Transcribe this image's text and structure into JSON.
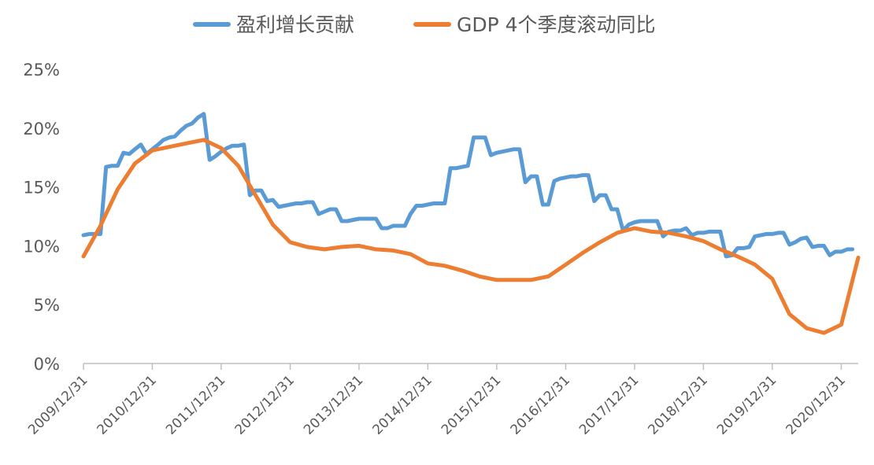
{
  "chart_data": {
    "type": "line",
    "title": "",
    "xlabel": "",
    "ylabel": "",
    "ylim": [
      0,
      0.25
    ],
    "y_ticks": [
      "0%",
      "5%",
      "10%",
      "15%",
      "20%",
      "25%"
    ],
    "x_ticks": [
      "2009/12/31",
      "2010/12/31",
      "2011/12/31",
      "2012/12/31",
      "2013/12/31",
      "2014/12/31",
      "2015/12/31",
      "2016/12/31",
      "2017/12/31",
      "2018/12/31",
      "2019/12/31",
      "2020/12/31"
    ],
    "grid": false,
    "legend_position": "top",
    "series": [
      {
        "name": "盈利增长贡献",
        "color": "#5B9BD5",
        "points": [
          [
            "2009-12-31",
            0.109
          ],
          [
            "2010-01-31",
            0.11
          ],
          [
            "2010-02-28",
            0.11
          ],
          [
            "2010-03-31",
            0.11
          ],
          [
            "2010-04-30",
            0.167
          ],
          [
            "2010-05-31",
            0.168
          ],
          [
            "2010-06-30",
            0.168
          ],
          [
            "2010-07-31",
            0.179
          ],
          [
            "2010-08-31",
            0.178
          ],
          [
            "2010-09-30",
            0.182
          ],
          [
            "2010-10-31",
            0.186
          ],
          [
            "2010-11-30",
            0.178
          ],
          [
            "2010-12-31",
            0.182
          ],
          [
            "2011-01-31",
            0.186
          ],
          [
            "2011-02-28",
            0.19
          ],
          [
            "2011-03-31",
            0.192
          ],
          [
            "2011-04-30",
            0.193
          ],
          [
            "2011-05-31",
            0.198
          ],
          [
            "2011-06-30",
            0.202
          ],
          [
            "2011-07-31",
            0.204
          ],
          [
            "2011-08-31",
            0.209
          ],
          [
            "2011-09-30",
            0.212
          ],
          [
            "2011-10-31",
            0.173
          ],
          [
            "2011-11-30",
            0.176
          ],
          [
            "2011-12-31",
            0.18
          ],
          [
            "2012-01-31",
            0.183
          ],
          [
            "2012-02-29",
            0.185
          ],
          [
            "2012-03-31",
            0.185
          ],
          [
            "2012-04-30",
            0.186
          ],
          [
            "2012-05-31",
            0.143
          ],
          [
            "2012-06-30",
            0.147
          ],
          [
            "2012-07-31",
            0.147
          ],
          [
            "2012-08-31",
            0.138
          ],
          [
            "2012-09-30",
            0.139
          ],
          [
            "2012-10-31",
            0.133
          ],
          [
            "2012-11-30",
            0.134
          ],
          [
            "2012-12-31",
            0.135
          ],
          [
            "2013-01-31",
            0.136
          ],
          [
            "2013-02-28",
            0.136
          ],
          [
            "2013-03-31",
            0.137
          ],
          [
            "2013-04-30",
            0.137
          ],
          [
            "2013-05-31",
            0.127
          ],
          [
            "2013-06-30",
            0.129
          ],
          [
            "2013-07-31",
            0.131
          ],
          [
            "2013-08-31",
            0.131
          ],
          [
            "2013-09-30",
            0.121
          ],
          [
            "2013-10-31",
            0.121
          ],
          [
            "2013-11-30",
            0.122
          ],
          [
            "2013-12-31",
            0.123
          ],
          [
            "2014-01-31",
            0.123
          ],
          [
            "2014-02-28",
            0.123
          ],
          [
            "2014-03-31",
            0.123
          ],
          [
            "2014-04-30",
            0.115
          ],
          [
            "2014-05-31",
            0.115
          ],
          [
            "2014-06-30",
            0.117
          ],
          [
            "2014-07-31",
            0.117
          ],
          [
            "2014-08-31",
            0.117
          ],
          [
            "2014-09-30",
            0.127
          ],
          [
            "2014-10-31",
            0.134
          ],
          [
            "2014-11-30",
            0.134
          ],
          [
            "2014-12-31",
            0.135
          ],
          [
            "2015-01-31",
            0.136
          ],
          [
            "2015-02-28",
            0.136
          ],
          [
            "2015-03-31",
            0.136
          ],
          [
            "2015-04-30",
            0.166
          ],
          [
            "2015-05-31",
            0.166
          ],
          [
            "2015-06-30",
            0.167
          ],
          [
            "2015-07-31",
            0.168
          ],
          [
            "2015-08-31",
            0.192
          ],
          [
            "2015-09-30",
            0.192
          ],
          [
            "2015-10-31",
            0.192
          ],
          [
            "2015-11-30",
            0.177
          ],
          [
            "2015-12-31",
            0.179
          ],
          [
            "2016-01-31",
            0.18
          ],
          [
            "2016-02-29",
            0.181
          ],
          [
            "2016-03-31",
            0.182
          ],
          [
            "2016-04-30",
            0.182
          ],
          [
            "2016-05-31",
            0.154
          ],
          [
            "2016-06-30",
            0.159
          ],
          [
            "2016-07-31",
            0.159
          ],
          [
            "2016-08-31",
            0.135
          ],
          [
            "2016-09-30",
            0.135
          ],
          [
            "2016-10-31",
            0.155
          ],
          [
            "2016-11-30",
            0.157
          ],
          [
            "2016-12-31",
            0.158
          ],
          [
            "2017-01-31",
            0.159
          ],
          [
            "2017-02-28",
            0.159
          ],
          [
            "2017-03-31",
            0.16
          ],
          [
            "2017-04-30",
            0.16
          ],
          [
            "2017-05-31",
            0.138
          ],
          [
            "2017-06-30",
            0.143
          ],
          [
            "2017-07-31",
            0.143
          ],
          [
            "2017-08-31",
            0.131
          ],
          [
            "2017-09-30",
            0.131
          ],
          [
            "2017-10-31",
            0.113
          ],
          [
            "2017-11-30",
            0.118
          ],
          [
            "2017-12-31",
            0.12
          ],
          [
            "2018-01-31",
            0.121
          ],
          [
            "2018-02-28",
            0.121
          ],
          [
            "2018-03-31",
            0.121
          ],
          [
            "2018-04-30",
            0.121
          ],
          [
            "2018-05-31",
            0.108
          ],
          [
            "2018-06-30",
            0.112
          ],
          [
            "2018-07-31",
            0.113
          ],
          [
            "2018-08-31",
            0.113
          ],
          [
            "2018-09-30",
            0.115
          ],
          [
            "2018-10-31",
            0.109
          ],
          [
            "2018-11-30",
            0.111
          ],
          [
            "2018-12-31",
            0.111
          ],
          [
            "2019-01-31",
            0.112
          ],
          [
            "2019-02-28",
            0.112
          ],
          [
            "2019-03-31",
            0.112
          ],
          [
            "2019-04-30",
            0.091
          ],
          [
            "2019-05-31",
            0.092
          ],
          [
            "2019-06-30",
            0.098
          ],
          [
            "2019-07-31",
            0.098
          ],
          [
            "2019-08-31",
            0.099
          ],
          [
            "2019-09-30",
            0.108
          ],
          [
            "2019-10-31",
            0.109
          ],
          [
            "2019-11-30",
            0.11
          ],
          [
            "2019-12-31",
            0.11
          ],
          [
            "2020-01-31",
            0.111
          ],
          [
            "2020-02-29",
            0.111
          ],
          [
            "2020-03-31",
            0.101
          ],
          [
            "2020-04-30",
            0.103
          ],
          [
            "2020-05-31",
            0.106
          ],
          [
            "2020-06-30",
            0.107
          ],
          [
            "2020-07-31",
            0.099
          ],
          [
            "2020-08-31",
            0.1
          ],
          [
            "2020-09-30",
            0.1
          ],
          [
            "2020-10-31",
            0.092
          ],
          [
            "2020-11-30",
            0.095
          ],
          [
            "2020-12-31",
            0.095
          ],
          [
            "2021-01-31",
            0.097
          ],
          [
            "2021-02-28",
            0.097
          ]
        ]
      },
      {
        "name": "GDP 4个季度滚动同比",
        "color": "#ED7D31",
        "points": [
          [
            "2009-12-31",
            0.091
          ],
          [
            "2010-03-31",
            0.117
          ],
          [
            "2010-06-30",
            0.148
          ],
          [
            "2010-09-30",
            0.17
          ],
          [
            "2010-12-31",
            0.181
          ],
          [
            "2011-03-31",
            0.184
          ],
          [
            "2011-06-30",
            0.187
          ],
          [
            "2011-09-30",
            0.19
          ],
          [
            "2011-12-31",
            0.183
          ],
          [
            "2012-03-31",
            0.168
          ],
          [
            "2012-06-30",
            0.143
          ],
          [
            "2012-09-30",
            0.118
          ],
          [
            "2012-12-31",
            0.103
          ],
          [
            "2013-03-31",
            0.099
          ],
          [
            "2013-06-30",
            0.097
          ],
          [
            "2013-09-30",
            0.099
          ],
          [
            "2013-12-31",
            0.1
          ],
          [
            "2014-03-31",
            0.097
          ],
          [
            "2014-06-30",
            0.096
          ],
          [
            "2014-09-30",
            0.093
          ],
          [
            "2014-12-31",
            0.085
          ],
          [
            "2015-03-31",
            0.083
          ],
          [
            "2015-06-30",
            0.079
          ],
          [
            "2015-09-30",
            0.074
          ],
          [
            "2015-12-31",
            0.071
          ],
          [
            "2016-03-31",
            0.071
          ],
          [
            "2016-06-30",
            0.071
          ],
          [
            "2016-09-30",
            0.074
          ],
          [
            "2016-12-31",
            0.084
          ],
          [
            "2017-03-31",
            0.094
          ],
          [
            "2017-06-30",
            0.103
          ],
          [
            "2017-09-30",
            0.111
          ],
          [
            "2017-12-31",
            0.115
          ],
          [
            "2018-03-31",
            0.112
          ],
          [
            "2018-06-30",
            0.111
          ],
          [
            "2018-09-30",
            0.108
          ],
          [
            "2018-12-31",
            0.104
          ],
          [
            "2019-03-31",
            0.097
          ],
          [
            "2019-06-30",
            0.091
          ],
          [
            "2019-09-30",
            0.084
          ],
          [
            "2019-12-31",
            0.072
          ],
          [
            "2020-03-31",
            0.042
          ],
          [
            "2020-06-30",
            0.03
          ],
          [
            "2020-09-30",
            0.026
          ],
          [
            "2020-12-31",
            0.033
          ],
          [
            "2021-03-31",
            0.09
          ]
        ]
      }
    ]
  }
}
